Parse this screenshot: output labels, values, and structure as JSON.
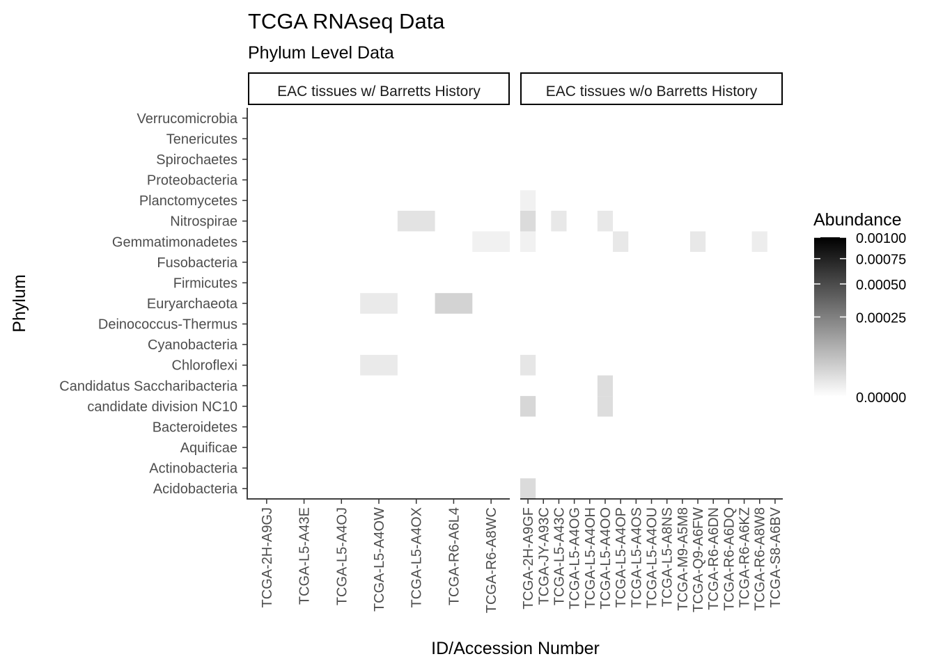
{
  "chart_data": {
    "type": "heatmap",
    "title": "TCGA RNAseq Data",
    "subtitle": "Phylum Level Data",
    "xlabel": "ID/Accession Number",
    "ylabel": "Phylum",
    "legend": {
      "title": "Abundance",
      "position": "right",
      "ticks": [
        "0.00100",
        "0.00075",
        "0.00050",
        "0.00025",
        "0.00000"
      ],
      "tick_values": [
        0.001,
        0.00075,
        0.0005,
        0.00025,
        0
      ],
      "range": [
        0,
        0.001
      ],
      "scale": "sqrt",
      "color_low": "#ffffff",
      "color_high": "#000000"
    },
    "grid": false,
    "phyla": [
      "Verrucomicrobia",
      "Tenericutes",
      "Spirochaetes",
      "Proteobacteria",
      "Planctomycetes",
      "Nitrospirae",
      "Gemmatimonadetes",
      "Fusobacteria",
      "Firmicutes",
      "Euryarchaeota",
      "Deinococcus-Thermus",
      "Cyanobacteria",
      "Chloroflexi",
      "Candidatus Saccharibacteria",
      "candidate division NC10",
      "Bacteroidetes",
      "Aquificae",
      "Actinobacteria",
      "Acidobacteria"
    ],
    "facets": [
      {
        "label": "EAC tissues w/ Barretts History",
        "samples": [
          "TCGA-2H-A9GJ",
          "TCGA-L5-A43E",
          "TCGA-L5-A4OJ",
          "TCGA-L5-A4OW",
          "TCGA-L5-A4OX",
          "TCGA-R6-A6L4",
          "TCGA-R6-A8WC"
        ],
        "cells": [
          {
            "sample": "TCGA-L5-A4OX",
            "phylum": "Nitrospirae",
            "value": 1.2e-05
          },
          {
            "sample": "TCGA-R6-A8WC",
            "phylum": "Gemmatimonadetes",
            "value": 3e-06
          },
          {
            "sample": "TCGA-L5-A4OW",
            "phylum": "Euryarchaeota",
            "value": 7e-06
          },
          {
            "sample": "TCGA-R6-A6L4",
            "phylum": "Euryarchaeota",
            "value": 3e-05
          },
          {
            "sample": "TCGA-L5-A4OW",
            "phylum": "Chloroflexi",
            "value": 7e-06
          }
        ]
      },
      {
        "label": "EAC tissues w/o Barretts History",
        "samples": [
          "TCGA-2H-A9GF",
          "TCGA-JY-A93C",
          "TCGA-L5-A43C",
          "TCGA-L5-A4OG",
          "TCGA-L5-A4OH",
          "TCGA-L5-A4OO",
          "TCGA-L5-A4OP",
          "TCGA-L5-A4OS",
          "TCGA-L5-A4OU",
          "TCGA-L5-A8NS",
          "TCGA-M9-A5M8",
          "TCGA-Q9-A6FW",
          "TCGA-R6-A6DN",
          "TCGA-R6-A6DQ",
          "TCGA-R6-A6KZ",
          "TCGA-R6-A8W8",
          "TCGA-S8-A6BV"
        ],
        "cells": [
          {
            "sample": "TCGA-2H-A9GF",
            "phylum": "Planctomycetes",
            "value": 3e-06
          },
          {
            "sample": "TCGA-2H-A9GF",
            "phylum": "Nitrospirae",
            "value": 2e-05
          },
          {
            "sample": "TCGA-L5-A43C",
            "phylum": "Nitrospirae",
            "value": 8e-06
          },
          {
            "sample": "TCGA-L5-A4OO",
            "phylum": "Nitrospirae",
            "value": 8e-06
          },
          {
            "sample": "TCGA-2H-A9GF",
            "phylum": "Gemmatimonadetes",
            "value": 3e-06
          },
          {
            "sample": "TCGA-L5-A4OP",
            "phylum": "Gemmatimonadetes",
            "value": 8e-06
          },
          {
            "sample": "TCGA-Q9-A6FW",
            "phylum": "Gemmatimonadetes",
            "value": 8e-06
          },
          {
            "sample": "TCGA-R6-A8W8",
            "phylum": "Gemmatimonadetes",
            "value": 5e-06
          },
          {
            "sample": "TCGA-2H-A9GF",
            "phylum": "Chloroflexi",
            "value": 1e-05
          },
          {
            "sample": "TCGA-L5-A4OO",
            "phylum": "Candidatus Saccharibacteria",
            "value": 1.8e-05
          },
          {
            "sample": "TCGA-2H-A9GF",
            "phylum": "candidate division NC10",
            "value": 2.5e-05
          },
          {
            "sample": "TCGA-L5-A4OO",
            "phylum": "candidate division NC10",
            "value": 1.8e-05
          },
          {
            "sample": "TCGA-2H-A9GF",
            "phylum": "Acidobacteria",
            "value": 2e-05
          }
        ]
      }
    ]
  }
}
